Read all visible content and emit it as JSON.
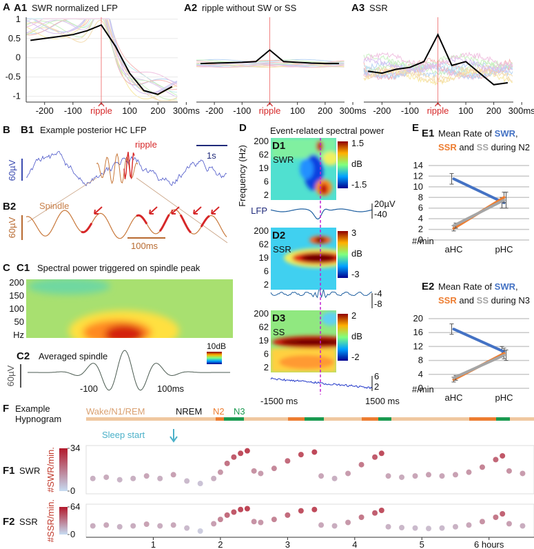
{
  "panel_a": {
    "label": "A"
  },
  "chart_data": [
    {
      "type": "line",
      "label": "A1",
      "title": "SWR normalized LFP",
      "x": [
        -250,
        -200,
        -150,
        -100,
        -50,
        0,
        50,
        100,
        150,
        200,
        250
      ],
      "series": [
        {
          "color": "#000000",
          "values": [
            0.45,
            0.5,
            0.55,
            0.6,
            0.7,
            0.85,
            0.3,
            -0.4,
            -0.85,
            -0.95,
            -0.75
          ]
        }
      ],
      "xlim": [
        -265,
        270
      ],
      "ylim": [
        -1.15,
        1.05
      ],
      "xticks": [
        -200,
        -100,
        {
          "value": 0,
          "label": "ripple"
        },
        100,
        200,
        {
          "value": 300,
          "label": "300ms"
        }
      ],
      "yticks": [
        1,
        0.5,
        0,
        -0.5,
        -1
      ],
      "grid": true
    },
    {
      "type": "line",
      "label": "A2",
      "title": "ripple without SW or SS",
      "x": [
        -250,
        -200,
        -150,
        -100,
        -50,
        0,
        50,
        100,
        150,
        200,
        250
      ],
      "series": [
        {
          "color": "#000000",
          "values": [
            -0.15,
            -0.14,
            -0.13,
            -0.12,
            -0.1,
            0.2,
            -0.1,
            -0.12,
            -0.14,
            -0.15,
            -0.15
          ]
        }
      ],
      "xlim": [
        -265,
        270
      ],
      "ylim": [
        -1.15,
        1.05
      ],
      "xticks": [
        -200,
        -100,
        {
          "value": 0,
          "label": "ripple"
        },
        100,
        200,
        {
          "value": 300,
          "label": "300ms"
        }
      ],
      "grid": false
    },
    {
      "type": "line",
      "label": "A3",
      "title": "SSR",
      "x": [
        -250,
        -200,
        -150,
        -100,
        -50,
        0,
        50,
        100,
        150,
        200,
        250
      ],
      "series": [
        {
          "color": "#000000",
          "values": [
            -0.35,
            -0.4,
            -0.3,
            -0.25,
            -0.1,
            0.6,
            -0.2,
            -0.1,
            -0.4,
            -0.7,
            -0.65
          ]
        }
      ],
      "xlim": [
        -265,
        270
      ],
      "ylim": [
        -1.15,
        1.05
      ],
      "xticks": [
        -200,
        -100,
        {
          "value": 0,
          "label": "ripple"
        },
        100,
        200,
        {
          "value": 300,
          "label": "300ms"
        }
      ],
      "grid": false
    },
    {
      "type": "line",
      "label": "E1",
      "title_parts": [
        [
          "Mean Rate of ",
          "SWR",
          ","
        ],
        [
          "SSR",
          " and ",
          "SS",
          " during N2"
        ]
      ],
      "categories": [
        "aHC",
        "pHC"
      ],
      "series": [
        {
          "name": "SWR",
          "color": "#4472c4",
          "values": [
            11.5,
            7
          ],
          "errors": [
            1,
            1
          ]
        },
        {
          "name": "SSR",
          "color": "#ed7d31",
          "values": [
            2.2,
            8
          ],
          "errors": [
            0.5,
            1
          ]
        },
        {
          "name": "SS",
          "color": "#a5a5a5",
          "values": [
            2.7,
            7.5
          ],
          "errors": [
            0.5,
            1.5
          ]
        }
      ],
      "ylim": [
        0,
        14
      ],
      "yticks": [
        0,
        2,
        4,
        6,
        8,
        10,
        12,
        14
      ],
      "ylabel": "#/min",
      "grid": true
    },
    {
      "type": "line",
      "label": "E2",
      "title_parts": [
        [
          "Mean Rate of ",
          "SWR",
          ","
        ],
        [
          "SSR",
          " and ",
          "SS",
          " during N3"
        ]
      ],
      "categories": [
        "aHC",
        "pHC"
      ],
      "series": [
        {
          "name": "SWR",
          "color": "#4472c4",
          "values": [
            17,
            10.5
          ],
          "errors": [
            1.5,
            1.5
          ]
        },
        {
          "name": "SSR",
          "color": "#ed7d31",
          "values": [
            2.5,
            10
          ],
          "errors": [
            0.7,
            1.5
          ]
        },
        {
          "name": "SS",
          "color": "#a5a5a5",
          "values": [
            3,
            9.5
          ],
          "errors": [
            0.7,
            1.5
          ]
        }
      ],
      "ylim": [
        0,
        20
      ],
      "yticks": [
        0,
        4,
        8,
        12,
        16,
        20
      ],
      "ylabel": "#/min",
      "grid": true
    },
    {
      "type": "scatter",
      "label": "F1",
      "title": "SWR",
      "ylabel": "#SWR/min.",
      "x": [
        0.1,
        0.3,
        0.5,
        0.7,
        0.9,
        1.1,
        1.3,
        1.5,
        1.7,
        1.9,
        2.0,
        2.1,
        2.2,
        2.3,
        2.4,
        2.5,
        2.6,
        2.8,
        3.0,
        3.2,
        3.4,
        3.5,
        3.7,
        3.9,
        4.1,
        4.3,
        4.4,
        4.5,
        4.7,
        4.9,
        5.1,
        5.3,
        5.5,
        5.7,
        5.9,
        6.1,
        6.2,
        6.3,
        6.5
      ],
      "values": [
        10,
        11,
        9,
        10,
        12,
        10,
        13,
        8,
        6,
        10,
        15,
        22,
        27,
        30,
        32,
        16,
        14,
        18,
        24,
        29,
        31,
        12,
        10,
        14,
        21,
        27,
        30,
        12,
        11,
        12,
        13,
        12,
        13,
        15,
        19,
        25,
        28,
        16,
        14
      ],
      "xlim": [
        0,
        6.67
      ],
      "ylim": [
        0,
        34
      ],
      "yticks": [
        0,
        34
      ],
      "colormap": [
        "#c6dcf2",
        "#b2182b"
      ]
    },
    {
      "type": "scatter",
      "label": "F2",
      "title": "SSR",
      "ylabel": "#SSR/min.",
      "x": [
        0.1,
        0.3,
        0.5,
        0.7,
        0.9,
        1.1,
        1.3,
        1.5,
        1.7,
        1.9,
        2.0,
        2.1,
        2.2,
        2.3,
        2.4,
        2.5,
        2.6,
        2.8,
        3.0,
        3.2,
        3.4,
        3.5,
        3.7,
        3.9,
        4.1,
        4.3,
        4.4,
        4.5,
        4.7,
        4.9,
        5.1,
        5.3,
        5.5,
        5.7,
        5.9,
        6.1,
        6.2,
        6.3,
        6.5
      ],
      "values": [
        20,
        22,
        18,
        20,
        24,
        20,
        22,
        15,
        8,
        25,
        35,
        45,
        52,
        58,
        60,
        30,
        28,
        35,
        45,
        55,
        58,
        22,
        20,
        28,
        40,
        50,
        56,
        18,
        16,
        15,
        14,
        15,
        18,
        22,
        30,
        40,
        48,
        25,
        20
      ],
      "xlim": [
        0,
        6.67
      ],
      "ylim": [
        0,
        64
      ],
      "yticks": [
        0,
        64
      ],
      "xticks": [
        1,
        2,
        3,
        4,
        5,
        {
          "value": 6,
          "label": "6 hours"
        }
      ],
      "colormap": [
        "#c6dcf2",
        "#b2182b"
      ]
    }
  ],
  "panel_b": {
    "label": "B",
    "b1": {
      "label": "B1",
      "title": "Example posterior HC LFP",
      "ripple": "ripple",
      "time_scale": "1s",
      "amp_scale": "60µV"
    },
    "b2": {
      "label": "B2",
      "spindle": "Spindle",
      "amp_scale": "60µV",
      "time_scale": "100ms"
    }
  },
  "panel_c": {
    "label": "C",
    "c1": {
      "label": "C1",
      "title": "Spectral power triggered on spindle peak",
      "freq_ticks": [
        "200",
        "150",
        "100",
        "50",
        "Hz"
      ],
      "color_scale": "10dB"
    },
    "c2": {
      "label": "C2",
      "title": "Averaged spindle",
      "amp_scale": "60µV",
      "time_ticks": [
        "-100",
        "100ms"
      ]
    }
  },
  "panel_d": {
    "label": "D",
    "title": "Event-related spectral power",
    "ylabel": "Frequency (Hz)",
    "x_ticks": [
      "-1500 ms",
      "1500 ms"
    ],
    "subpanels": [
      {
        "label": "D1",
        "name": "SWR",
        "freq_ticks": [
          "200",
          "62",
          "19",
          "6",
          "2"
        ],
        "color_ticks": [
          "1.5",
          "dB",
          "-1.5"
        ],
        "trace_label": "LFP",
        "trace_ticks": [
          "20µV",
          "-40"
        ]
      },
      {
        "label": "D2",
        "name": "SSR",
        "freq_ticks": [
          "200",
          "62",
          "19",
          "6",
          "2"
        ],
        "color_ticks": [
          "3",
          "dB",
          "-3"
        ],
        "trace_ticks": [
          "-4",
          "-8"
        ]
      },
      {
        "label": "D3",
        "name": "SS",
        "freq_ticks": [
          "200",
          "62",
          "19",
          "6",
          "2"
        ],
        "color_ticks": [
          "2",
          "dB",
          "-2"
        ],
        "trace_ticks": [
          "6",
          "2"
        ]
      }
    ]
  },
  "panel_e": {
    "label": "E"
  },
  "hypnogram": {
    "label": "F",
    "title_lines": [
      "Example",
      "Hypnogram"
    ],
    "stages": [
      "Wake/N1/REM",
      "NREM",
      "N2",
      "N3"
    ],
    "annotation": "Sleep start"
  }
}
